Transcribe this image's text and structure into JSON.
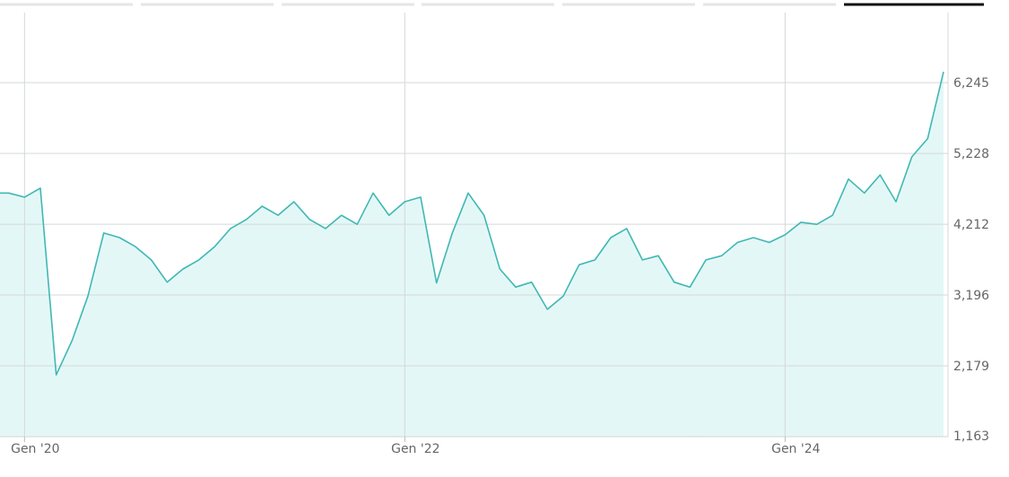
{
  "chart_data": {
    "type": "area",
    "x": [
      "2019-11",
      "2019-12",
      "2020-01",
      "2020-02",
      "2020-03",
      "2020-04",
      "2020-05",
      "2020-06",
      "2020-07",
      "2020-08",
      "2020-09",
      "2020-10",
      "2020-11",
      "2020-12",
      "2021-01",
      "2021-02",
      "2021-03",
      "2021-04",
      "2021-05",
      "2021-06",
      "2021-07",
      "2021-08",
      "2021-09",
      "2021-10",
      "2021-11",
      "2021-12",
      "2022-01",
      "2022-02",
      "2022-03",
      "2022-04",
      "2022-05",
      "2022-06",
      "2022-07",
      "2022-08",
      "2022-09",
      "2022-10",
      "2022-11",
      "2022-12",
      "2023-01",
      "2023-02",
      "2023-03",
      "2023-04",
      "2023-05",
      "2023-06",
      "2023-07",
      "2023-08",
      "2023-09",
      "2023-10",
      "2023-11",
      "2023-12",
      "2024-01",
      "2024-02",
      "2024-03",
      "2024-04",
      "2024-05",
      "2024-06",
      "2024-07",
      "2024-08",
      "2024-09",
      "2024-10",
      "2024-11"
    ],
    "values": [
      4660,
      4660,
      4600,
      4730,
      2050,
      2540,
      3180,
      4085,
      4020,
      3890,
      3700,
      3380,
      3570,
      3700,
      3890,
      4150,
      4280,
      4470,
      4340,
      4535,
      4280,
      4150,
      4340,
      4210,
      4660,
      4340,
      4535,
      4600,
      3370,
      4085,
      4660,
      4340,
      3570,
      3310,
      3380,
      2990,
      3180,
      3630,
      3700,
      4020,
      4150,
      3700,
      3760,
      3380,
      3310,
      3700,
      3760,
      3950,
      4020,
      3950,
      4060,
      4240,
      4210,
      4340,
      4860,
      4660,
      4920,
      4535,
      5180,
      5440,
      6400
    ],
    "color": "#3fb8b3",
    "fill": "#e4f7f7",
    "xlim": [
      "2019-11",
      "2024-11"
    ],
    "xticks": [
      {
        "value": "2020-01",
        "label": "Gen '20"
      },
      {
        "value": "2022-01",
        "label": "Gen '22"
      },
      {
        "value": "2024-01",
        "label": "Gen '24"
      }
    ],
    "ylim": [
      1163,
      7250
    ],
    "yticks": [
      {
        "value": 1163,
        "label": "1,163"
      },
      {
        "value": 2179,
        "label": "2,179"
      },
      {
        "value": 3196,
        "label": "3,196"
      },
      {
        "value": 4212,
        "label": "4,212"
      },
      {
        "value": 5228,
        "label": "5,228"
      },
      {
        "value": 6245,
        "label": "6,245"
      }
    ],
    "grid": true
  }
}
